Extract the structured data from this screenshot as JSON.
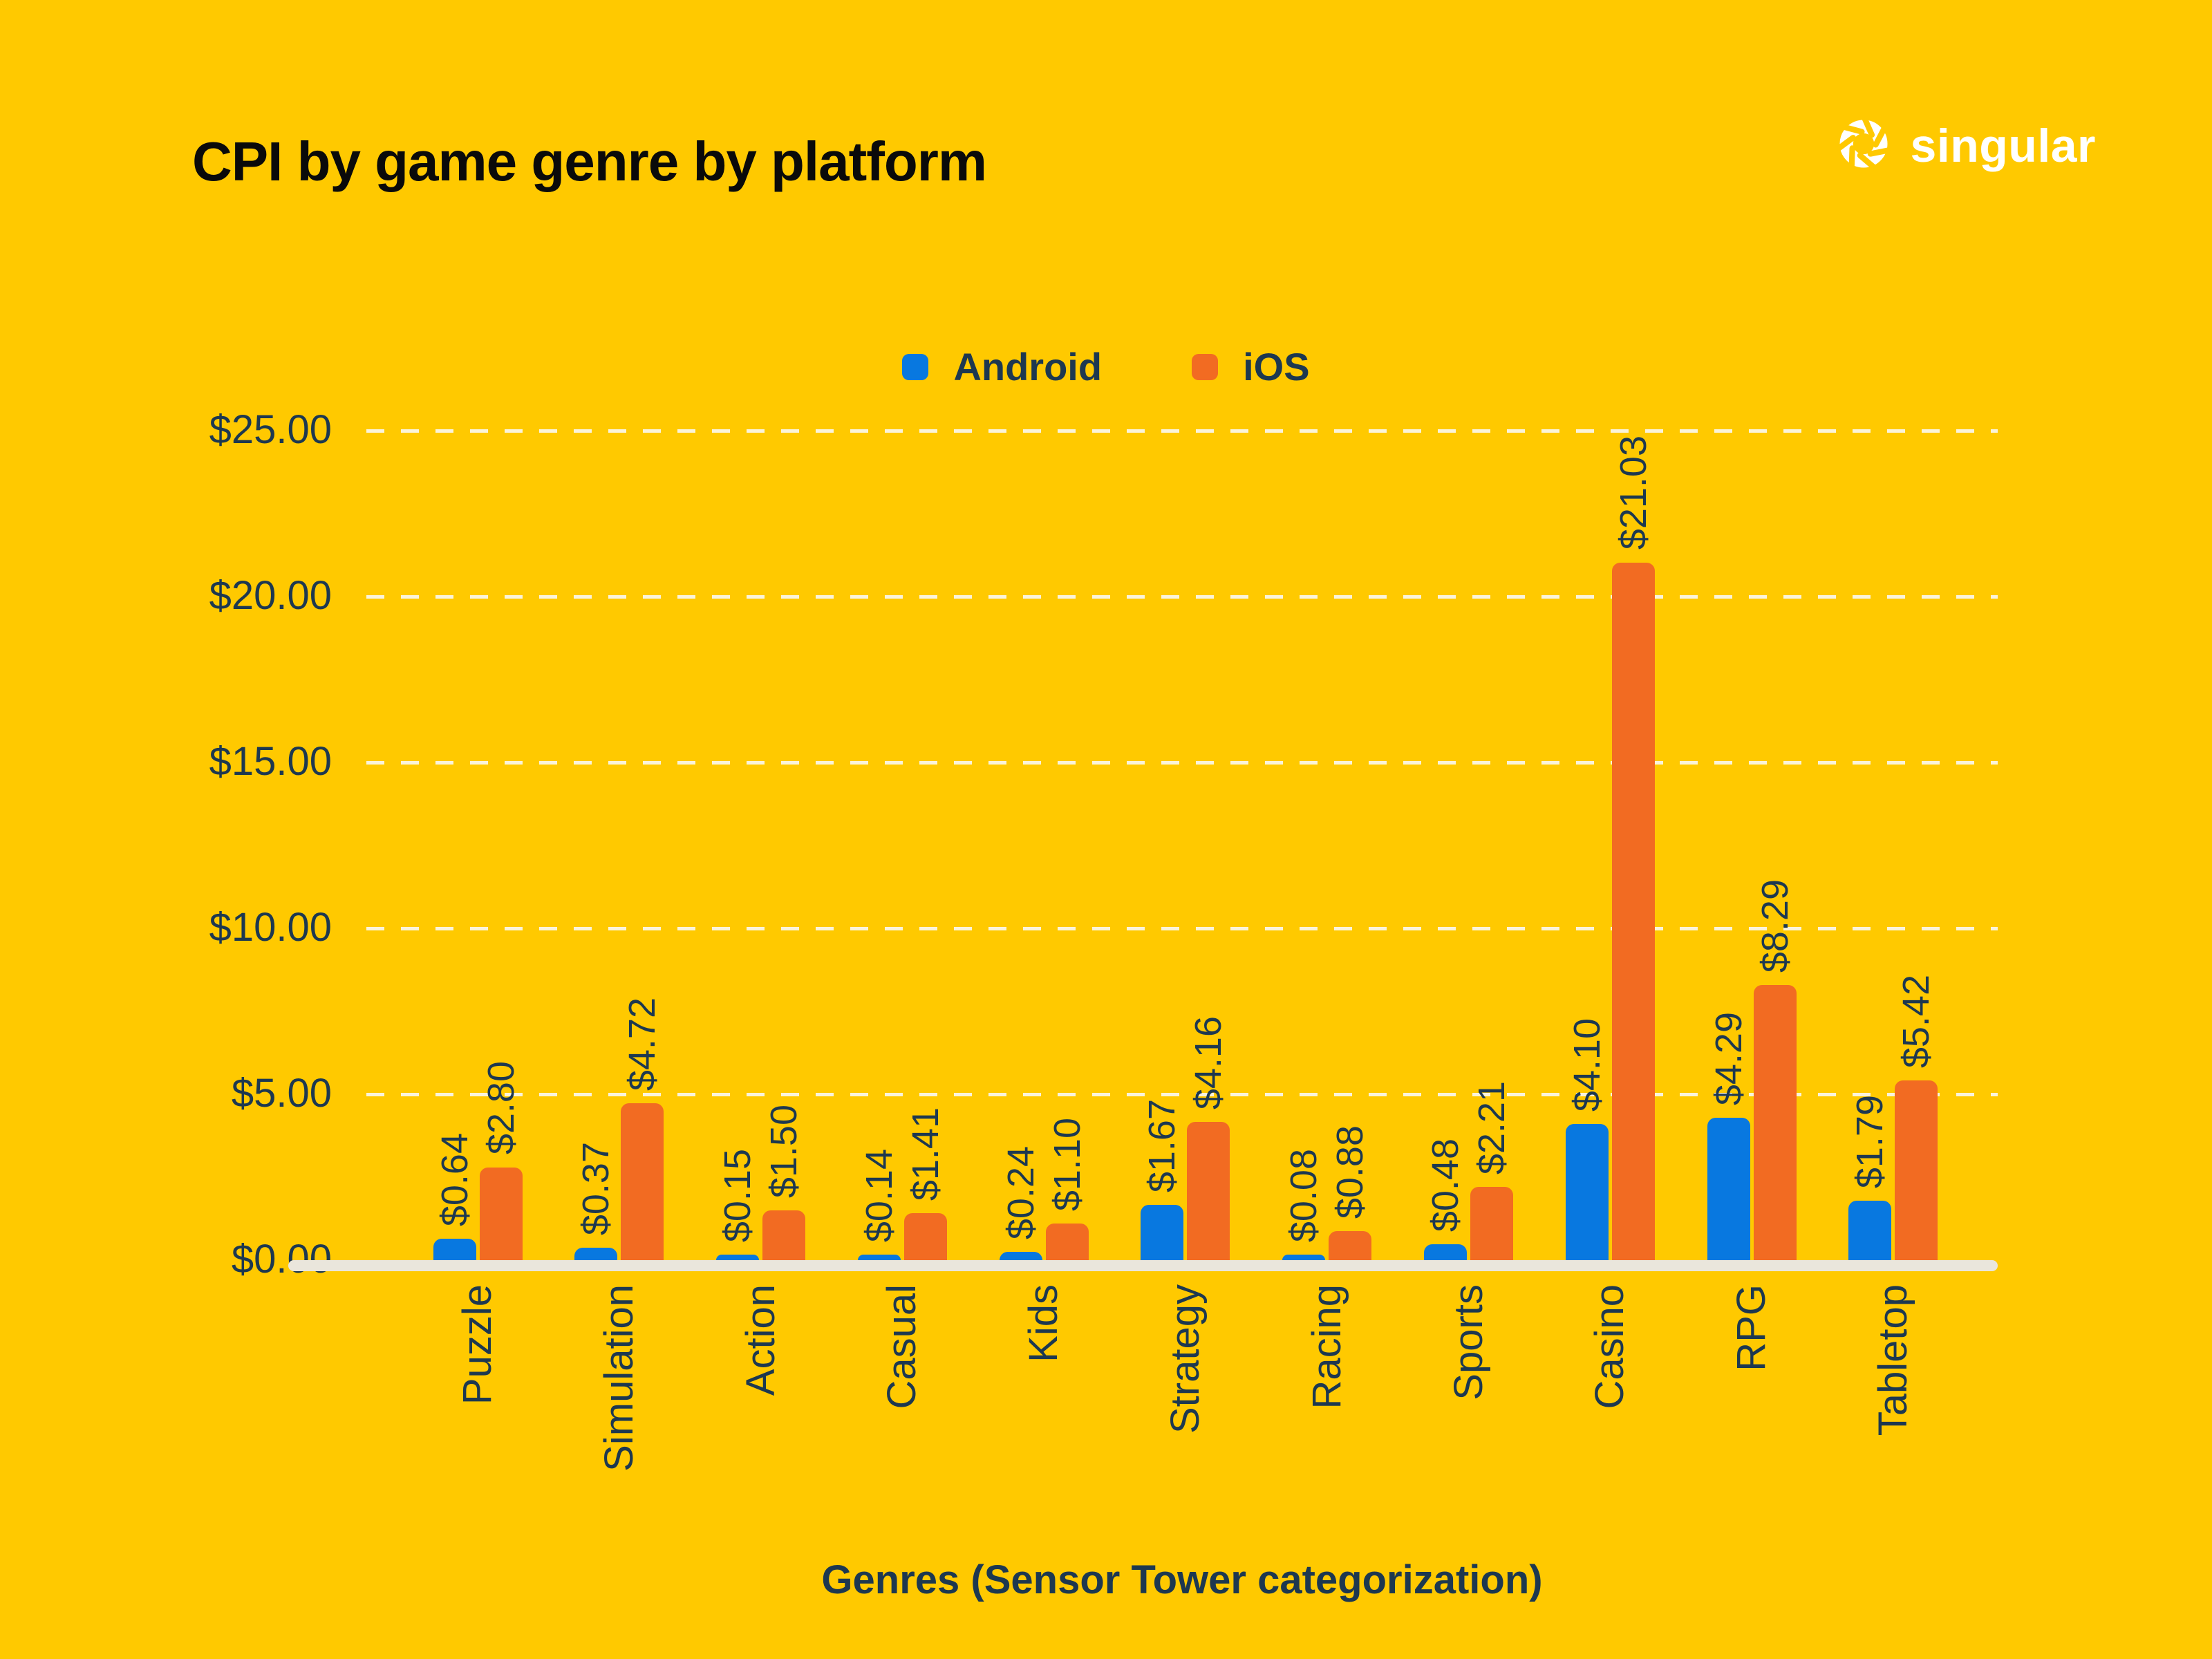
{
  "title": "CPI by game genre by platform",
  "brand": {
    "name": "singular"
  },
  "legend": {
    "items": [
      {
        "label": "Android",
        "color": "#0878E0"
      },
      {
        "label": "iOS",
        "color": "#F26B22"
      }
    ]
  },
  "chart_data": {
    "type": "bar",
    "title": "CPI by game genre by platform",
    "xlabel": "Genres (Sensor Tower categorization)",
    "ylabel": "",
    "categories": [
      "Puzzle",
      "Simulation",
      "Action",
      "Casual",
      "Kids",
      "Strategy",
      "Racing",
      "Sports",
      "Casino",
      "RPG",
      "Tabletop"
    ],
    "series": [
      {
        "name": "Android",
        "color": "#0878E0",
        "values": [
          0.64,
          0.37,
          0.15,
          0.14,
          0.24,
          1.67,
          0.08,
          0.48,
          4.1,
          4.29,
          1.79
        ],
        "labels": [
          "$0.64",
          "$0.37",
          "$0.15",
          "$0.14",
          "$0.24",
          "$1.67",
          "$0.08",
          "$0.48",
          "$4.10",
          "$4.29",
          "$1.79"
        ]
      },
      {
        "name": "iOS",
        "color": "#F26B22",
        "values": [
          2.8,
          4.72,
          1.5,
          1.41,
          1.1,
          4.16,
          0.88,
          2.21,
          21.03,
          8.29,
          5.42
        ],
        "labels": [
          "$2.80",
          "$4.72",
          "$1.50",
          "$1.41",
          "$1.10",
          "$4.16",
          "$0.88",
          "$2.21",
          "$21.03",
          "$8.29",
          "$5.42"
        ]
      }
    ],
    "y_ticks": [
      {
        "label": "$0.00",
        "value": 0
      },
      {
        "label": "$5.00",
        "value": 5
      },
      {
        "label": "$10.00",
        "value": 10
      },
      {
        "label": "$15.00",
        "value": 15
      },
      {
        "label": "$20.00",
        "value": 20
      },
      {
        "label": "$25.00",
        "value": 25
      }
    ],
    "ylim": [
      0,
      25
    ],
    "grid": "horizontal-dashed",
    "legend_position": "top-center"
  },
  "colors": {
    "background": "#FFC900",
    "android": "#0878E0",
    "ios": "#F26B22",
    "text_dark": "#1D3850",
    "title_text": "#0A0A0A",
    "axis_line": "#EAE6DC",
    "gridline": "#FAF7EE",
    "logo": "#FFFFFF"
  }
}
